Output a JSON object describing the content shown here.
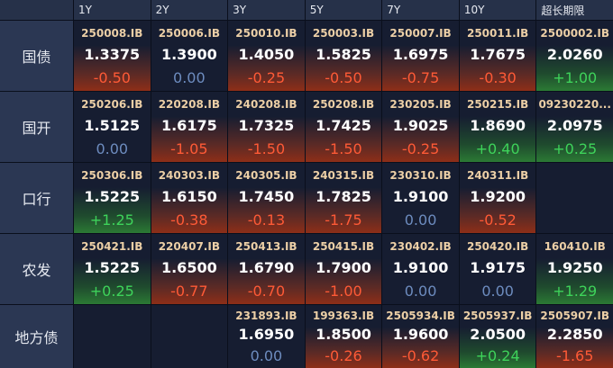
{
  "header": {
    "corner": "",
    "columns": [
      "1Y",
      "2Y",
      "3Y",
      "5Y",
      "7Y",
      "10Y",
      "超长期限"
    ]
  },
  "table": {
    "rows": [
      {
        "label": "国债",
        "cells": [
          {
            "code": "250008.IB",
            "yield": "1.3375",
            "change": "-0.50"
          },
          {
            "code": "250006.IB",
            "yield": "1.3900",
            "change": "0.00"
          },
          {
            "code": "250010.IB",
            "yield": "1.4050",
            "change": "-0.25"
          },
          {
            "code": "250003.IB",
            "yield": "1.5825",
            "change": "-0.50"
          },
          {
            "code": "250007.IB",
            "yield": "1.6975",
            "change": "-0.75"
          },
          {
            "code": "250011.IB",
            "yield": "1.7675",
            "change": "-0.30"
          },
          {
            "code": "2500002.IB",
            "yield": "2.0260",
            "change": "+1.00"
          }
        ]
      },
      {
        "label": "国开",
        "cells": [
          {
            "code": "250206.IB",
            "yield": "1.5125",
            "change": "0.00"
          },
          {
            "code": "220208.IB",
            "yield": "1.6175",
            "change": "-1.05"
          },
          {
            "code": "240208.IB",
            "yield": "1.7325",
            "change": "-1.50"
          },
          {
            "code": "250208.IB",
            "yield": "1.7425",
            "change": "-1.50"
          },
          {
            "code": "230205.IB",
            "yield": "1.9025",
            "change": "-0.25"
          },
          {
            "code": "250215.IB",
            "yield": "1.8690",
            "change": "+0.40"
          },
          {
            "code": "09230220...",
            "yield": "2.0975",
            "change": "+0.25"
          }
        ]
      },
      {
        "label": "口行",
        "cells": [
          {
            "code": "250306.IB",
            "yield": "1.5225",
            "change": "+1.25"
          },
          {
            "code": "240303.IB",
            "yield": "1.6150",
            "change": "-0.38"
          },
          {
            "code": "240305.IB",
            "yield": "1.7450",
            "change": "-0.13"
          },
          {
            "code": "240315.IB",
            "yield": "1.7825",
            "change": "-1.75"
          },
          {
            "code": "230310.IB",
            "yield": "1.9100",
            "change": "0.00"
          },
          {
            "code": "240311.IB",
            "yield": "1.9200",
            "change": "-0.52"
          },
          null
        ]
      },
      {
        "label": "农发",
        "cells": [
          {
            "code": "250421.IB",
            "yield": "1.5225",
            "change": "+0.25"
          },
          {
            "code": "220407.IB",
            "yield": "1.6500",
            "change": "-0.77"
          },
          {
            "code": "250413.IB",
            "yield": "1.6790",
            "change": "-0.70"
          },
          {
            "code": "250415.IB",
            "yield": "1.7900",
            "change": "-1.00"
          },
          {
            "code": "230402.IB",
            "yield": "1.9100",
            "change": "0.00"
          },
          {
            "code": "250420.IB",
            "yield": "1.9175",
            "change": "0.00"
          },
          {
            "code": "160410.IB",
            "yield": "1.9250",
            "change": "+1.29"
          }
        ]
      },
      {
        "label": "地方债",
        "cells": [
          null,
          null,
          {
            "code": "231893.IB",
            "yield": "1.6950",
            "change": "0.00"
          },
          {
            "code": "199363.IB",
            "yield": "1.8500",
            "change": "-0.26"
          },
          {
            "code": "2505934.IB",
            "yield": "1.9600",
            "change": "-0.62"
          },
          {
            "code": "2505937.IB",
            "yield": "2.0500",
            "change": "+0.24"
          },
          {
            "code": "2505907.IB",
            "yield": "2.2850",
            "change": "-1.65"
          }
        ]
      }
    ]
  }
}
